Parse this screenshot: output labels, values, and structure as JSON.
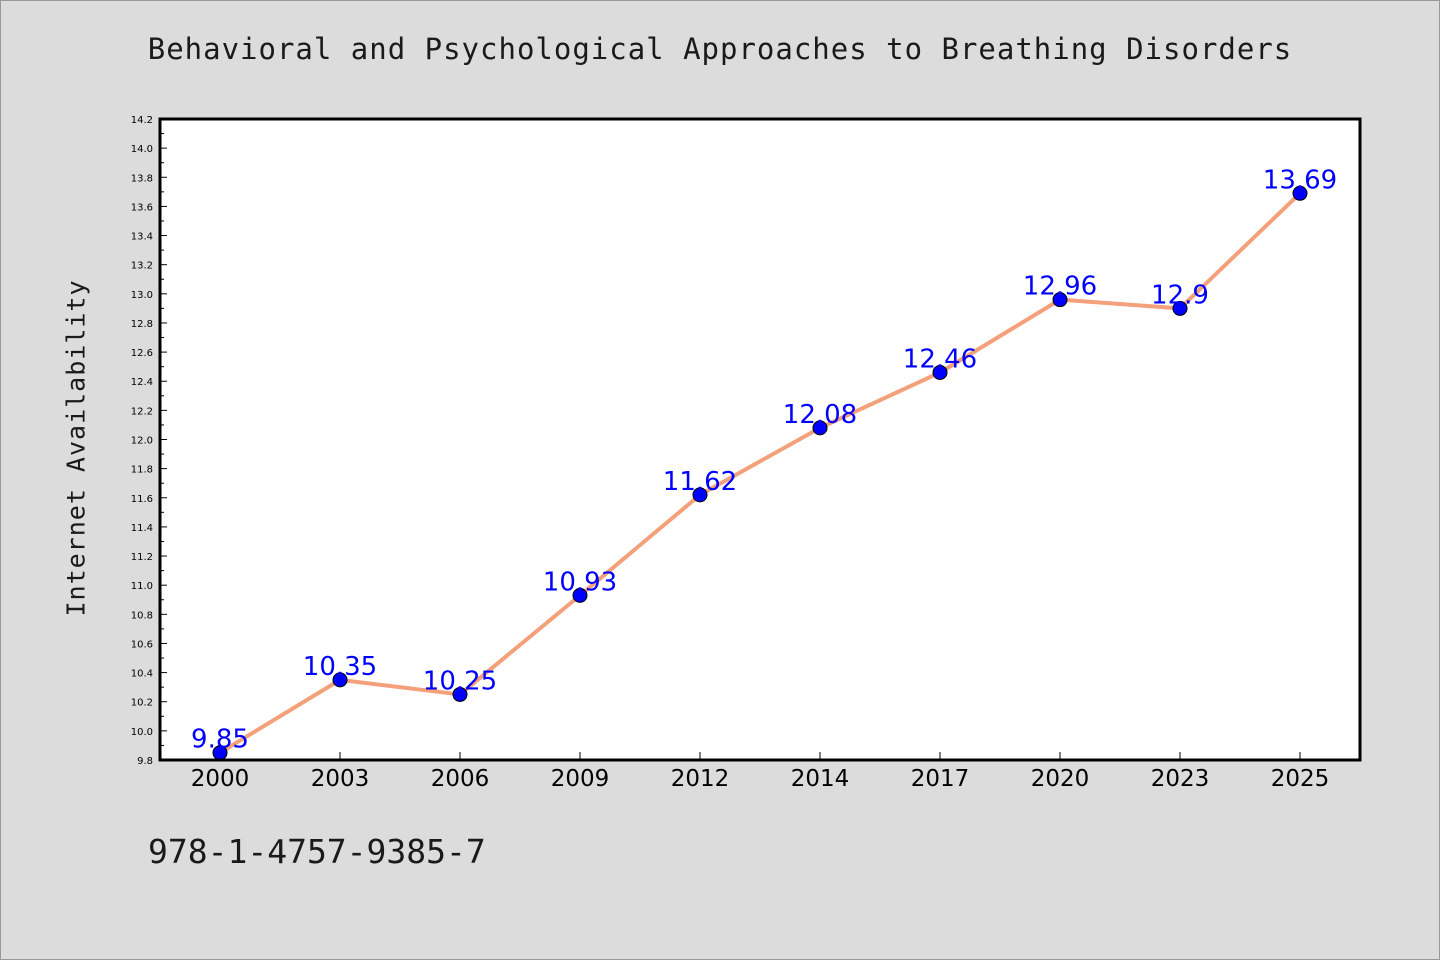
{
  "chart_data": {
    "type": "line",
    "title": "Behavioral and Psychological Approaches to Breathing Disorders",
    "xlabel": "",
    "ylabel": "Internet Availability",
    "categories": [
      "2000",
      "2003",
      "2006",
      "2009",
      "2012",
      "2014",
      "2017",
      "2020",
      "2023",
      "2025"
    ],
    "series": [
      {
        "values": [
          9.85,
          10.35,
          10.25,
          10.93,
          11.62,
          12.08,
          12.46,
          12.96,
          12.9,
          13.69
        ],
        "data_labels": [
          "9.85",
          "10.35",
          "10.25",
          "10.93",
          "11.62",
          "12.08",
          "12.46",
          "12.96",
          "12.9",
          "13.69"
        ]
      }
    ],
    "ylim": [
      9.8,
      14.2
    ],
    "yticks": [
      "9.8",
      "10.0",
      "10.2",
      "10.4",
      "10.6",
      "10.8",
      "11.0",
      "11.2",
      "11.4",
      "11.6",
      "11.8",
      "12.0",
      "12.2",
      "12.4",
      "12.6",
      "12.8",
      "13.0",
      "13.2",
      "13.4",
      "13.6",
      "13.8",
      "14.0",
      "14.2"
    ],
    "grid": false,
    "legend": "none",
    "colors": {
      "line": "#f4a07a",
      "marker": "#0000ff",
      "data_label": "#0000ff",
      "background": "#dcdcdc",
      "plot_area": "#ffffff"
    }
  },
  "footer": {
    "isbn": "978-1-4757-9385-7"
  }
}
